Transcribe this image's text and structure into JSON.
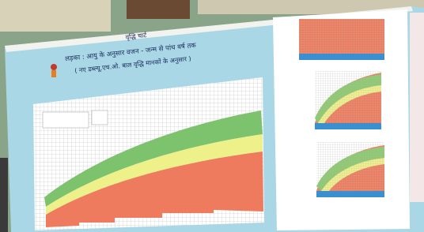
{
  "poster": {
    "title": "वृद्धि चार्ट",
    "subtitle": "लड़का : आयु के अनुसार वजन - जन्म से पांच वर्ष तक",
    "note": "( नए डब्ल्यू.एच.ओ. बाल वृद्धि मानकों के अनुसार )"
  }
}
